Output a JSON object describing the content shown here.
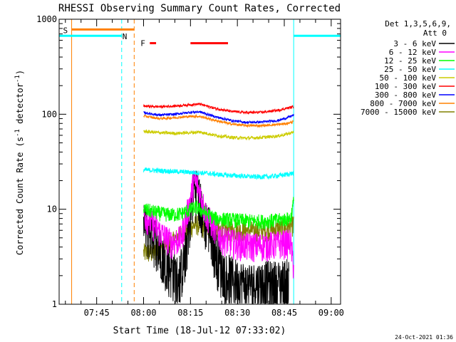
{
  "chart_data": {
    "type": "line",
    "title": "RHESSI Observing Summary Count Rates, Corrected",
    "xlabel": "Start Time (18-Jul-12 07:33:02)",
    "ylabel": "Corrected Count Rate (s",
    "ylabel_sup": "-1",
    "ylabel_mid": " detector",
    "ylabel_sup2": "-1",
    "ylabel_end": ")",
    "x_range_minutes": [
      0,
      90
    ],
    "x_origin_time": "07:33:02",
    "y_scale": "log",
    "ylim": [
      1,
      1000
    ],
    "y_ticks": [
      {
        "value": 1,
        "label": "1"
      },
      {
        "value": 10,
        "label": "10"
      },
      {
        "value": 100,
        "label": "100"
      },
      {
        "value": 1000,
        "label": "1000"
      }
    ],
    "x_ticks": [
      {
        "minute": 12,
        "label": "07:45"
      },
      {
        "minute": 27,
        "label": "08:00"
      },
      {
        "minute": 42,
        "label": "08:15"
      },
      {
        "minute": 57,
        "label": "08:30"
      },
      {
        "minute": 72,
        "label": "08:45"
      },
      {
        "minute": 87,
        "label": "09:00"
      }
    ],
    "legend": {
      "position": "right",
      "header1": "Det 1,3,5,6,9,",
      "header2": "Att 0",
      "entries": [
        {
          "label": "3 - 6 keV",
          "color": "#000000"
        },
        {
          "label": "6 - 12 keV",
          "color": "#ff00ff"
        },
        {
          "label": "12 - 25 keV",
          "color": "#00ff00"
        },
        {
          "label": "25 - 50 keV",
          "color": "#00ffff"
        },
        {
          "label": "50 - 100 keV",
          "color": "#cccc00"
        },
        {
          "label": "100 - 300 keV",
          "color": "#ff0000"
        },
        {
          "label": "300 - 800 keV",
          "color": "#0000ff"
        },
        {
          "label": "800 - 7000 keV",
          "color": "#ff8000"
        },
        {
          "label": "7000 - 15000 keV",
          "color": "#808000"
        }
      ]
    },
    "series": [
      {
        "name": "3 - 6 keV",
        "color": "#000000",
        "points": [
          [
            27,
            7
          ],
          [
            30,
            6
          ],
          [
            33,
            3.5
          ],
          [
            36,
            2.5
          ],
          [
            38,
            2
          ],
          [
            40,
            3
          ],
          [
            42,
            10
          ],
          [
            43,
            17
          ],
          [
            44,
            18
          ],
          [
            45,
            13
          ],
          [
            46,
            9
          ],
          [
            48,
            7
          ],
          [
            50,
            4
          ],
          [
            52,
            2.5
          ],
          [
            55,
            2
          ],
          [
            58,
            1.8
          ],
          [
            62,
            1.7
          ],
          [
            66,
            1.8
          ],
          [
            70,
            1.8
          ],
          [
            73.5,
            1.9
          ]
        ]
      },
      {
        "name": "6 - 12 keV",
        "color": "#ff00ff",
        "points": [
          [
            27,
            9
          ],
          [
            30,
            7
          ],
          [
            33,
            5.5
          ],
          [
            36,
            4.5
          ],
          [
            39,
            5
          ],
          [
            42,
            13
          ],
          [
            43,
            20
          ],
          [
            44,
            19
          ],
          [
            45,
            15
          ],
          [
            47,
            9
          ],
          [
            49,
            7
          ],
          [
            52,
            5
          ],
          [
            56,
            4.5
          ],
          [
            60,
            4.2
          ],
          [
            64,
            4.2
          ],
          [
            68,
            4.3
          ],
          [
            72,
            4.5
          ],
          [
            74,
            4.6
          ],
          [
            75,
            2.5
          ]
        ]
      },
      {
        "name": "12 - 25 keV",
        "color": "#00ff00",
        "points": [
          [
            27,
            10
          ],
          [
            30,
            9.5
          ],
          [
            33,
            9
          ],
          [
            36,
            8.8
          ],
          [
            39,
            9
          ],
          [
            42,
            10
          ],
          [
            44,
            10.5
          ],
          [
            46,
            9.5
          ],
          [
            50,
            8
          ],
          [
            55,
            7.8
          ],
          [
            60,
            7.6
          ],
          [
            65,
            7.5
          ],
          [
            70,
            7.7
          ],
          [
            74,
            8
          ],
          [
            75,
            12
          ]
        ]
      },
      {
        "name": "25 - 50 keV",
        "color": "#00ffff",
        "points": [
          [
            27,
            26
          ],
          [
            32,
            25.5
          ],
          [
            37,
            25
          ],
          [
            42,
            24.5
          ],
          [
            47,
            24
          ],
          [
            52,
            23
          ],
          [
            57,
            22.5
          ],
          [
            62,
            22
          ],
          [
            67,
            22
          ],
          [
            72,
            23
          ],
          [
            75,
            24
          ]
        ]
      },
      {
        "name": "50 - 100 keV",
        "color": "#cccc00",
        "points": [
          [
            27,
            66
          ],
          [
            32,
            64
          ],
          [
            37,
            63
          ],
          [
            42,
            64
          ],
          [
            45,
            65
          ],
          [
            50,
            60
          ],
          [
            55,
            57
          ],
          [
            60,
            56
          ],
          [
            65,
            57
          ],
          [
            70,
            59
          ],
          [
            73,
            62
          ],
          [
            75,
            65
          ]
        ]
      },
      {
        "name": "100 - 300 keV",
        "color": "#ff0000",
        "points": [
          [
            27,
            122
          ],
          [
            32,
            120
          ],
          [
            37,
            122
          ],
          [
            42,
            126
          ],
          [
            45,
            128
          ],
          [
            50,
            115
          ],
          [
            55,
            107
          ],
          [
            60,
            104
          ],
          [
            65,
            105
          ],
          [
            70,
            110
          ],
          [
            73,
            116
          ],
          [
            75,
            120
          ]
        ]
      },
      {
        "name": "300 - 800 keV",
        "color": "#0000ff",
        "points": [
          [
            27,
            104
          ],
          [
            32,
            98
          ],
          [
            37,
            100
          ],
          [
            42,
            105
          ],
          [
            45,
            106
          ],
          [
            50,
            94
          ],
          [
            55,
            86
          ],
          [
            60,
            82
          ],
          [
            65,
            83
          ],
          [
            70,
            86
          ],
          [
            73,
            92
          ],
          [
            75,
            98
          ]
        ]
      },
      {
        "name": "800 - 7000 keV",
        "color": "#ff8000",
        "points": [
          [
            27,
            96
          ],
          [
            32,
            90
          ],
          [
            37,
            92
          ],
          [
            42,
            95
          ],
          [
            45,
            95
          ],
          [
            50,
            86
          ],
          [
            55,
            79
          ],
          [
            60,
            76
          ],
          [
            65,
            76
          ],
          [
            70,
            78
          ],
          [
            73,
            80
          ],
          [
            75,
            84
          ]
        ]
      },
      {
        "name": "7000 - 15000 keV",
        "color": "#808000",
        "points": [
          [
            27,
            3.5
          ],
          [
            30,
            3.5
          ],
          [
            33,
            4
          ],
          [
            36,
            4.5
          ],
          [
            39,
            5.5
          ],
          [
            42,
            6.5
          ],
          [
            44,
            7
          ],
          [
            46,
            6.5
          ],
          [
            50,
            6
          ],
          [
            55,
            6
          ],
          [
            60,
            6
          ],
          [
            65,
            6
          ],
          [
            70,
            6.2
          ],
          [
            74,
            6.5
          ],
          [
            75,
            7
          ]
        ]
      }
    ],
    "annotations": {
      "saa_label": "S",
      "night_label": "N",
      "flare_label": "F",
      "saa": {
        "color": "#ff8000",
        "start_minute": 4,
        "end_minute": 24,
        "level": 780
      },
      "night_bars": [
        {
          "color": "#00ffff",
          "start_minute": 0,
          "end_minute": 20,
          "level": 670
        },
        {
          "color": "#00ffff",
          "start_minute": 75,
          "end_minute": 90,
          "level": 670
        }
      ],
      "flare_bars": [
        {
          "color": "#ff0000",
          "start_minute": 29,
          "end_minute": 31,
          "level": 560
        },
        {
          "color": "#ff0000",
          "start_minute": 42,
          "end_minute": 54,
          "level": 560
        }
      ],
      "vlines": [
        {
          "minute": 4,
          "color": "#ff8000",
          "dash": "solid"
        },
        {
          "minute": 24,
          "color": "#ff8000",
          "dash": "dashed"
        },
        {
          "minute": 20,
          "color": "#00ffff",
          "dash": "dashed"
        },
        {
          "minute": 75,
          "color": "#00ffff",
          "dash": "solid"
        },
        {
          "minute": 90,
          "color": "#00ffff",
          "dash": "dashed"
        }
      ]
    }
  },
  "footer": {
    "timestamp": "24-Oct-2021 01:36"
  }
}
